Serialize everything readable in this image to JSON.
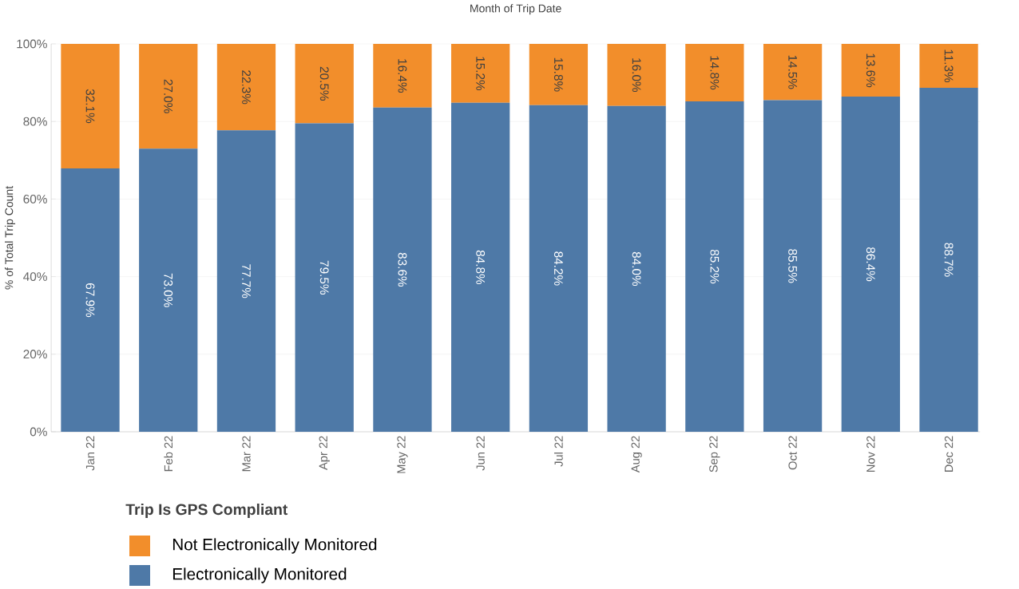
{
  "chart_data": {
    "type": "bar",
    "stacked": true,
    "title": "Month of Trip Date",
    "ylabel": "% of Total Trip Count",
    "legend_title": "Trip Is GPS Compliant",
    "legend": "bottom",
    "grid": "y",
    "categories": [
      "Jan 22",
      "Feb 22",
      "Mar 22",
      "Apr 22",
      "May 22",
      "Jun 22",
      "Jul 22",
      "Aug 22",
      "Sep 22",
      "Oct 22",
      "Nov 22",
      "Dec 22"
    ],
    "ylim": [
      0,
      100
    ],
    "yticks": [
      {
        "value": 0,
        "label": "0%"
      },
      {
        "value": 20,
        "label": "20%"
      },
      {
        "value": 40,
        "label": "40%"
      },
      {
        "value": 60,
        "label": "60%"
      },
      {
        "value": 80,
        "label": "80%"
      },
      {
        "value": 100,
        "label": "100%"
      }
    ],
    "series": [
      {
        "name": "Electronically Monitored",
        "color": "#4e79a7",
        "values": [
          67.9,
          73.0,
          77.7,
          79.5,
          83.6,
          84.8,
          84.2,
          84.0,
          85.2,
          85.5,
          86.4,
          88.7
        ],
        "value_labels": [
          "67.9%",
          "73.0%",
          "77.7%",
          "79.5%",
          "83.6%",
          "84.8%",
          "84.2%",
          "84.0%",
          "85.2%",
          "85.5%",
          "86.4%",
          "88.7%"
        ]
      },
      {
        "name": "Not Electronically Monitored",
        "color": "#f28e2b",
        "values": [
          32.1,
          27.0,
          22.3,
          20.5,
          16.4,
          15.2,
          15.8,
          16.0,
          14.8,
          14.5,
          13.6,
          11.3
        ],
        "value_labels": [
          "32.1%",
          "27.0%",
          "22.3%",
          "20.5%",
          "16.4%",
          "15.2%",
          "15.8%",
          "16.0%",
          "14.8%",
          "14.5%",
          "13.6%",
          "11.3%"
        ]
      }
    ]
  }
}
